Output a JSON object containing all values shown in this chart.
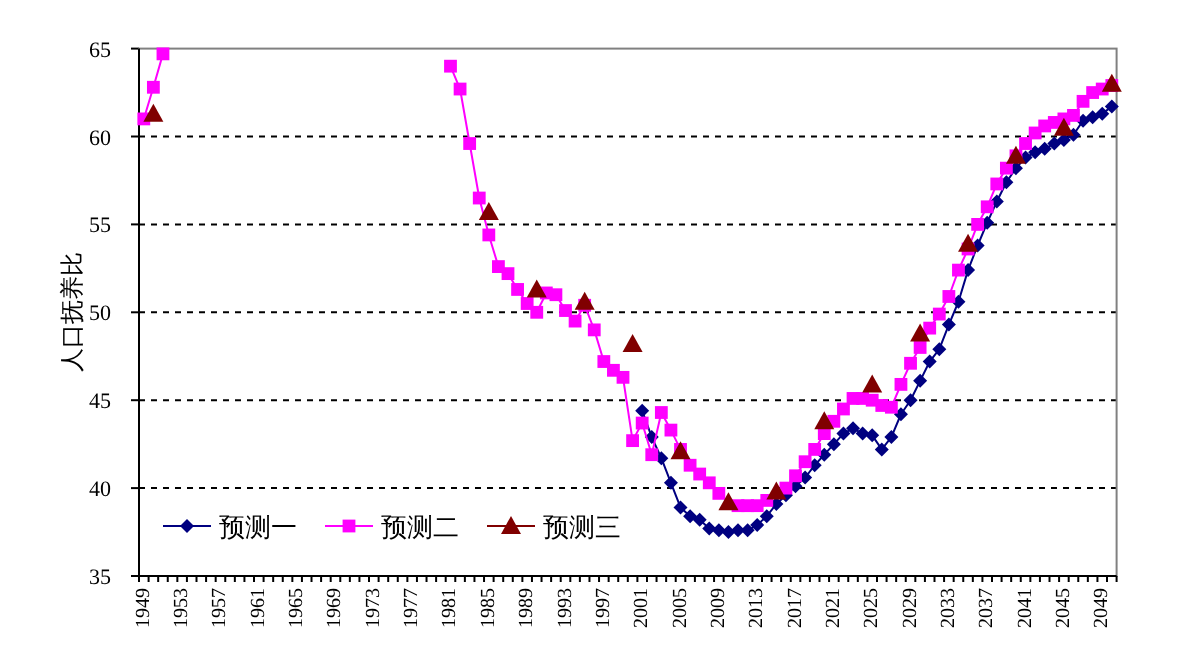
{
  "chart_data": {
    "type": "line",
    "ylabel": "人口抚养比",
    "categories": [
      "1949",
      null,
      null,
      null,
      "1953",
      null,
      null,
      null,
      "1957",
      null,
      null,
      null,
      "1961",
      null,
      null,
      null,
      "1965",
      null,
      null,
      null,
      "1969",
      null,
      null,
      null,
      "1973",
      null,
      null,
      null,
      "1977",
      null,
      null,
      null,
      "1981",
      null,
      null,
      null,
      "1985",
      null,
      null,
      null,
      "1989",
      null,
      null,
      null,
      "1993",
      null,
      null,
      null,
      "1997",
      null,
      null,
      null,
      "2001",
      null,
      null,
      null,
      "2005",
      null,
      null,
      null,
      "2009",
      null,
      null,
      null,
      "2013",
      null,
      null,
      null,
      "2017",
      null,
      null,
      null,
      "2021",
      null,
      null,
      null,
      "2025",
      null,
      null,
      null,
      "2029",
      null,
      null,
      null,
      "2033",
      null,
      null,
      null,
      "2037",
      null,
      null,
      null,
      "2041",
      null,
      null,
      null,
      "2045",
      null,
      null,
      null,
      "2049",
      null
    ],
    "ylim": [
      35,
      65
    ],
    "yticks": [
      35,
      40,
      45,
      50,
      55,
      60,
      65
    ],
    "grid": "y",
    "legend": "bottom left",
    "line_style": "solid",
    "series": [
      {
        "name": "预测一",
        "color": "#000080",
        "marker": "diamond",
        "values": [
          null,
          null,
          null,
          null,
          null,
          null,
          null,
          null,
          null,
          null,
          null,
          null,
          null,
          null,
          null,
          null,
          null,
          null,
          null,
          null,
          null,
          null,
          null,
          null,
          null,
          null,
          null,
          null,
          null,
          null,
          null,
          null,
          null,
          null,
          null,
          null,
          null,
          null,
          null,
          null,
          null,
          null,
          null,
          null,
          null,
          null,
          null,
          null,
          null,
          null,
          null,
          null,
          44.4,
          42.9,
          41.7,
          40.3,
          38.9,
          38.4,
          38.2,
          37.7,
          37.6,
          37.5,
          37.6,
          37.6,
          37.9,
          38.4,
          39.1,
          39.6,
          40.1,
          40.6,
          41.3,
          41.9,
          42.5,
          43.1,
          43.4,
          43.1,
          43.0,
          42.2,
          42.9,
          44.2,
          45.0,
          46.1,
          47.2,
          47.9,
          49.3,
          50.6,
          52.4,
          53.8,
          55.1,
          56.3,
          57.4,
          58.2,
          58.8,
          59.1,
          59.3,
          59.6,
          59.8,
          60.1,
          60.9,
          61.1,
          61.3,
          61.7
        ]
      },
      {
        "name": "预测二",
        "color": "#ff00ff",
        "marker": "square",
        "values": [
          61.0,
          62.8,
          64.7,
          null,
          null,
          null,
          null,
          null,
          null,
          null,
          null,
          null,
          null,
          null,
          null,
          null,
          null,
          null,
          null,
          null,
          null,
          null,
          null,
          null,
          null,
          null,
          null,
          null,
          null,
          null,
          null,
          null,
          64.0,
          62.7,
          59.6,
          56.5,
          54.4,
          52.6,
          52.2,
          51.3,
          50.5,
          50.0,
          51.1,
          51.0,
          50.1,
          49.5,
          50.4,
          49.0,
          47.2,
          46.7,
          46.3,
          42.7,
          43.7,
          41.9,
          44.3,
          43.3,
          42.2,
          41.3,
          40.8,
          40.3,
          39.7,
          null,
          39.0,
          39.0,
          39.0,
          39.3,
          null,
          40.0,
          40.7,
          41.5,
          42.2,
          43.1,
          43.8,
          44.5,
          45.1,
          45.1,
          45.0,
          44.7,
          44.6,
          45.9,
          47.1,
          48.0,
          49.1,
          49.9,
          50.9,
          52.4,
          53.6,
          55.0,
          56.0,
          57.3,
          58.2,
          58.9,
          59.6,
          60.2,
          60.6,
          60.8,
          61.0,
          61.2,
          62.0,
          62.5,
          62.7,
          62.9
        ]
      },
      {
        "name": "预测三",
        "color": "#800000",
        "marker": "triangle",
        "values": [
          null,
          61.3,
          null,
          null,
          null,
          null,
          null,
          null,
          null,
          null,
          null,
          null,
          null,
          null,
          null,
          null,
          null,
          null,
          null,
          null,
          null,
          null,
          null,
          null,
          null,
          null,
          null,
          null,
          null,
          null,
          null,
          null,
          null,
          null,
          null,
          null,
          55.7,
          null,
          null,
          null,
          null,
          51.3,
          null,
          null,
          null,
          null,
          50.6,
          null,
          null,
          null,
          null,
          48.2,
          null,
          null,
          null,
          null,
          42.1,
          null,
          null,
          null,
          null,
          39.2,
          null,
          null,
          null,
          null,
          39.8,
          null,
          null,
          null,
          null,
          43.8,
          null,
          null,
          null,
          null,
          45.9,
          null,
          null,
          null,
          null,
          48.8,
          null,
          null,
          null,
          null,
          53.9,
          null,
          null,
          null,
          null,
          58.9,
          null,
          null,
          null,
          null,
          60.5,
          null,
          null,
          null,
          null,
          63.0
        ]
      }
    ]
  }
}
